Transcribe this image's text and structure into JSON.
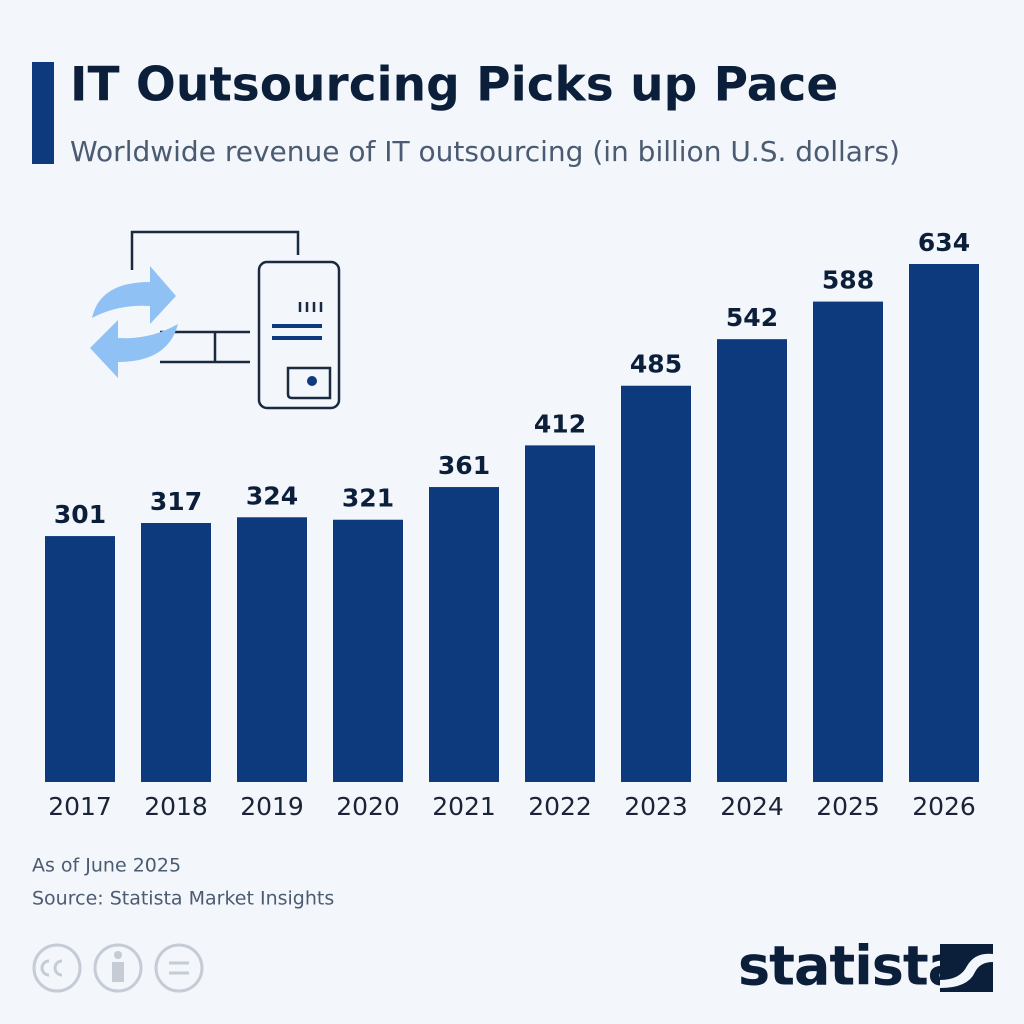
{
  "chart_data": {
    "type": "bar",
    "title": "IT Outsourcing Picks up Pace",
    "subtitle": "Worldwide revenue of IT outsourcing (in billion U.S. dollars)",
    "categories": [
      "2017",
      "2018",
      "2019",
      "2020",
      "2021",
      "2022",
      "2023",
      "2024",
      "2025",
      "2026"
    ],
    "values": [
      301,
      317,
      324,
      321,
      361,
      412,
      485,
      542,
      588,
      634
    ],
    "color": "#0c3a7d",
    "note": "As of June 2025",
    "source": "Source: Statista Market Insights",
    "brand": "statista"
  }
}
